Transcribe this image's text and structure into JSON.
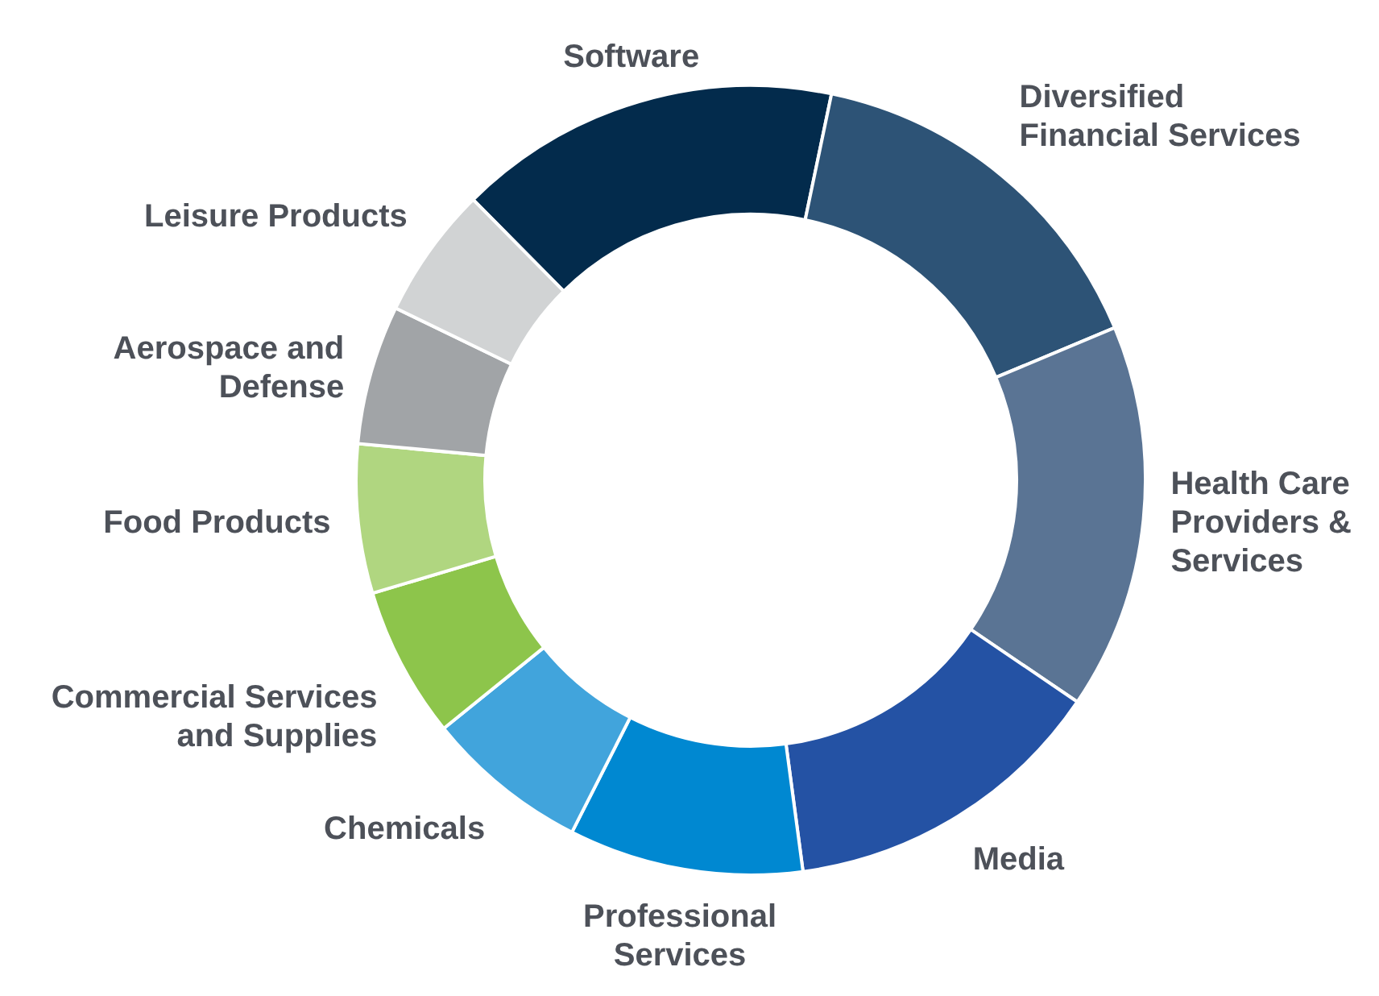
{
  "chart_data": {
    "type": "donut",
    "categories": [
      "Software",
      "Diversified Financial Services",
      "Health Care Providers & Services",
      "Media",
      "Professional Services",
      "Chemicals",
      "Commercial Services and Supplies",
      "Food Products",
      "Aerospace and Defense",
      "Leisure Products"
    ],
    "values": [
      15.7,
      15.4,
      15.8,
      13.4,
      9.6,
      6.7,
      6.2,
      6.1,
      5.7,
      5.4
    ],
    "colors": [
      "#032b4c",
      "#2d5376",
      "#5a7494",
      "#2452a4",
      "#0088d1",
      "#41a4dc",
      "#8dc54b",
      "#b0d680",
      "#a1a4a7",
      "#d1d3d4"
    ]
  }
}
